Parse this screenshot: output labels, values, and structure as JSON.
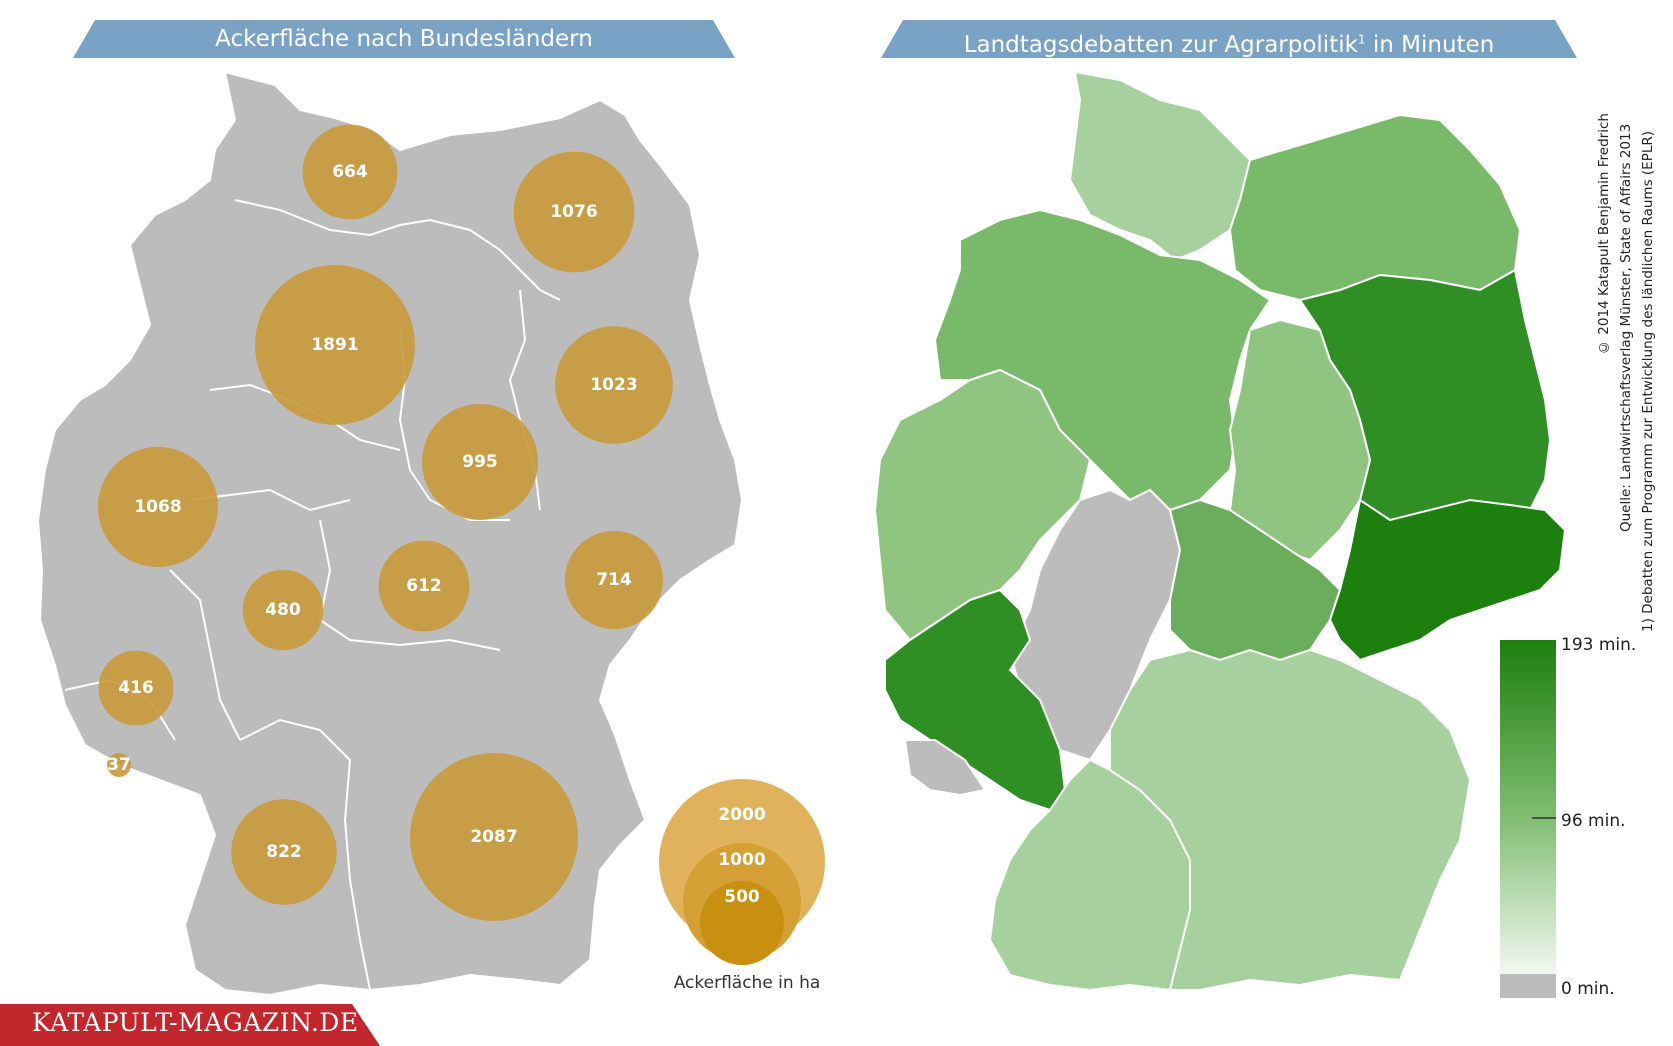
{
  "titles": {
    "left": "Ackerfläche nach Bundesländern",
    "right_main": "Landtagsdebatten zur Agrarpolitik",
    "right_sup": "1",
    "right_tail": " in Minuten"
  },
  "colors": {
    "banner": "#7aa2c4",
    "map_grey": "#bcbcbc",
    "bubble": "#c9993a",
    "legend_outer": "#e0b25c",
    "legend_mid": "#d49f35",
    "legend_inner": "#c98f10",
    "green_light": "#a6d09d",
    "green_mid": "#79b96a",
    "green_dark": "#2f8f24",
    "green_darkest": "#1d7f0e",
    "logo_red": "#c1272d"
  },
  "bubbles": [
    {
      "state": "Schleswig-Holstein",
      "value": 664,
      "label": "664"
    },
    {
      "state": "Mecklenburg-Vorpommern",
      "value": 1076,
      "label": "1076"
    },
    {
      "state": "Niedersachsen",
      "value": 1891,
      "label": "1891"
    },
    {
      "state": "Brandenburg",
      "value": 1023,
      "label": "1023"
    },
    {
      "state": "Sachsen-Anhalt",
      "value": 995,
      "label": "995"
    },
    {
      "state": "Nordrhein-Westfalen",
      "value": 1068,
      "label": "1068"
    },
    {
      "state": "Thüringen",
      "value": 612,
      "label": "612"
    },
    {
      "state": "Sachsen",
      "value": 714,
      "label": "714"
    },
    {
      "state": "Hessen",
      "value": 480,
      "label": "480"
    },
    {
      "state": "Rheinland-Pfalz",
      "value": 416,
      "label": "416"
    },
    {
      "state": "Saarland",
      "value": 37,
      "label": "37"
    },
    {
      "state": "Baden-Württemberg",
      "value": 822,
      "label": "822"
    },
    {
      "state": "Bayern",
      "value": 2087,
      "label": "2087"
    }
  ],
  "bubble_legend": {
    "values": [
      "2000",
      "1000",
      "500"
    ],
    "caption": "Ackerfläche in ha"
  },
  "debate_legend": {
    "max": "193 min.",
    "mid": "96 min.",
    "min": "0 min."
  },
  "credits": {
    "line1": "© 2014 Katapult Benjamin Fredrich",
    "line2": "Quelle: Landwirtschaftsverlag Münster, State of Affairs 2013",
    "line3": "1) Debatten zum Programm zur Entwicklung des ländlichen Raums (EPLR)"
  },
  "logo": "KATAPULT-MAGAZIN.DE"
}
